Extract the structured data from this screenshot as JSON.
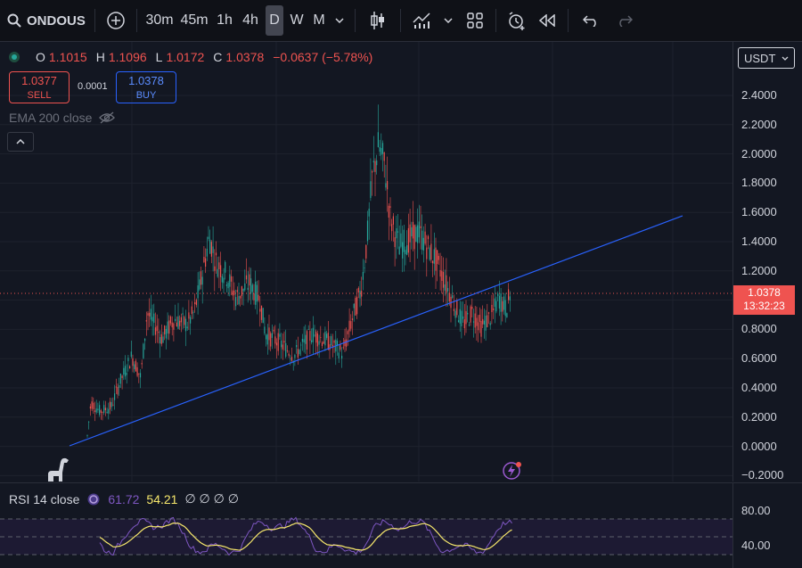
{
  "toolbar": {
    "symbol": "ONDOUS",
    "intervals": [
      "30m",
      "45m",
      "1h",
      "4h",
      "D",
      "W",
      "M"
    ],
    "active_interval": "D"
  },
  "legend": {
    "open_key": "O",
    "open": "1.1015",
    "high_key": "H",
    "high": "1.1096",
    "low_key": "L",
    "low": "1.0172",
    "close_key": "C",
    "close": "1.0378",
    "change": "−0.0637 (−5.78%)"
  },
  "trade": {
    "sell_price": "1.0377",
    "sell_label": "SELL",
    "spread": "0.0001",
    "buy_price": "1.0378",
    "buy_label": "BUY"
  },
  "ema_label": "EMA 200 close",
  "collapse_symbol": "^",
  "currency": "USDT",
  "price_axis": [
    "2.4000",
    "2.2000",
    "2.0000",
    "1.8000",
    "1.6000",
    "1.4000",
    "1.2000",
    "1.0000",
    "0.8000",
    "0.6000",
    "0.4000",
    "0.2000",
    "0.0000",
    "−0.2000"
  ],
  "price_tag": {
    "price": "1.0378",
    "countdown": "13:32:23"
  },
  "rsi": {
    "label": "RSI 14 close",
    "value1": "61.72",
    "value2": "54.21",
    "placeholders": "∅ ∅ ∅ ∅",
    "axis": [
      "80.00",
      "40.00"
    ]
  },
  "colors": {
    "up": "#26a69a",
    "down": "#ef5350",
    "trendline": "#2962ff",
    "rsi_line": "#7e57c2",
    "rsi_ma": "#f7e86c"
  }
}
